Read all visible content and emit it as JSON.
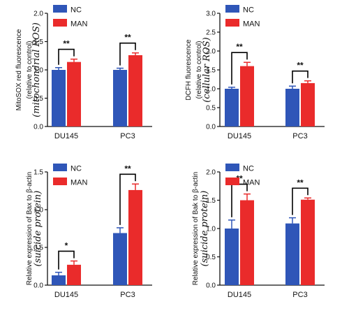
{
  "colors": {
    "nc": "#2f56b8",
    "man": "#ea2b2b",
    "axis": "#111111"
  },
  "chart_data": [
    {
      "type": "bar",
      "categories": [
        "DU145",
        "PC3"
      ],
      "series": [
        {
          "name": "NC",
          "values": [
            1.0,
            1.0
          ],
          "errors": [
            0.04,
            0.03
          ]
        },
        {
          "name": "MAN",
          "values": [
            1.14,
            1.26
          ],
          "errors": [
            0.05,
            0.04
          ]
        }
      ],
      "ylim": [
        0,
        2.0
      ],
      "yticks": [
        "0.0",
        "0.5",
        "1.0",
        "1.5",
        "2.0"
      ],
      "ylabel_lines": [
        "MitoSOX red fluorescence",
        "(relative to control)"
      ],
      "ylabel_italic": "(mitochondrial ROS)",
      "significance": [
        "**",
        "**"
      ],
      "legend": "top-left"
    },
    {
      "type": "bar",
      "categories": [
        "DU145",
        "PC3"
      ],
      "series": [
        {
          "name": "NC",
          "values": [
            1.0,
            1.0
          ],
          "errors": [
            0.04,
            0.07
          ]
        },
        {
          "name": "MAN",
          "values": [
            1.6,
            1.15
          ],
          "errors": [
            0.1,
            0.06
          ]
        }
      ],
      "ylim": [
        0,
        3.0
      ],
      "yticks": [
        "0.0",
        "0.5",
        "1.0",
        "1.5",
        "2.0",
        "2.5",
        "3.0"
      ],
      "ylabel_lines": [
        "DCFH fluorescence",
        "(relative to control)"
      ],
      "ylabel_italic": "(cellular ROS)",
      "significance": [
        "**",
        "**"
      ],
      "legend": "top-left"
    },
    {
      "type": "bar",
      "categories": [
        "DU145",
        "PC3"
      ],
      "series": [
        {
          "name": "NC",
          "values": [
            0.13,
            0.69
          ],
          "errors": [
            0.04,
            0.07
          ]
        },
        {
          "name": "MAN",
          "values": [
            0.27,
            1.26
          ],
          "errors": [
            0.05,
            0.08
          ]
        }
      ],
      "ylim": [
        0,
        1.5
      ],
      "yticks": [
        "0.0",
        "0.5",
        "1.0",
        "1.5"
      ],
      "ylabel_lines": [
        "Relative expression of Bax to β-actin"
      ],
      "ylabel_italic": "(suicide protein)",
      "significance": [
        "*",
        "**"
      ],
      "legend": "top-left"
    },
    {
      "type": "bar",
      "categories": [
        "DU145",
        "PC3"
      ],
      "series": [
        {
          "name": "NC",
          "values": [
            1.0,
            1.09
          ],
          "errors": [
            0.15,
            0.1
          ]
        },
        {
          "name": "MAN",
          "values": [
            1.5,
            1.51
          ],
          "errors": [
            0.11,
            0.03
          ]
        }
      ],
      "ylim": [
        0,
        2.0
      ],
      "yticks": [
        "0.0",
        "0.5",
        "1.0",
        "1.5",
        "2.0"
      ],
      "ylabel_lines": [
        "Relative expression of Bak to β-actin"
      ],
      "ylabel_italic": "(suicide protein)",
      "significance": [
        "**",
        "**"
      ],
      "legend": "top-left"
    }
  ]
}
